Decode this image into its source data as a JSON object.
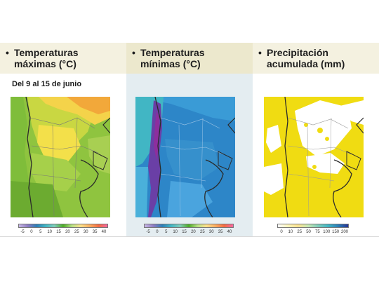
{
  "panels": [
    {
      "bullet": "•",
      "title_line1": "Temperaturas",
      "title_line2": "máximas (°C)",
      "scale_ticks": [
        "-5",
        "0",
        "5",
        "10",
        "15",
        "20",
        "25",
        "30",
        "35",
        "40"
      ]
    },
    {
      "bullet": "•",
      "title_line1": "Temperaturas",
      "title_line2": "mínimas (°C)",
      "scale_ticks": [
        "-5",
        "0",
        "5",
        "10",
        "15",
        "20",
        "25",
        "30",
        "35",
        "40"
      ]
    },
    {
      "bullet": "•",
      "title_line1": "Precipitación",
      "title_line2": "acumulada (mm)",
      "scale_ticks": [
        "0",
        "10",
        "25",
        "50",
        "75",
        "100",
        "150",
        "200"
      ]
    }
  ],
  "date_range": "Del 9 al 15 de junio",
  "colors": {
    "temp_scale": [
      "#e8eaf6",
      "#c7b7e6",
      "#8e7cc3",
      "#2c7fb8",
      "#41b6c4",
      "#7fcdbb",
      "#4dac26",
      "#b8e186",
      "#fee08b",
      "#fdae61",
      "#f46d43",
      "#f768a1"
    ],
    "precip_scale": [
      "#ffffff",
      "#fff7bc",
      "#fee391",
      "#c7e9b4",
      "#7fcdbb",
      "#41b6c4",
      "#2c7fb8",
      "#253494"
    ]
  }
}
